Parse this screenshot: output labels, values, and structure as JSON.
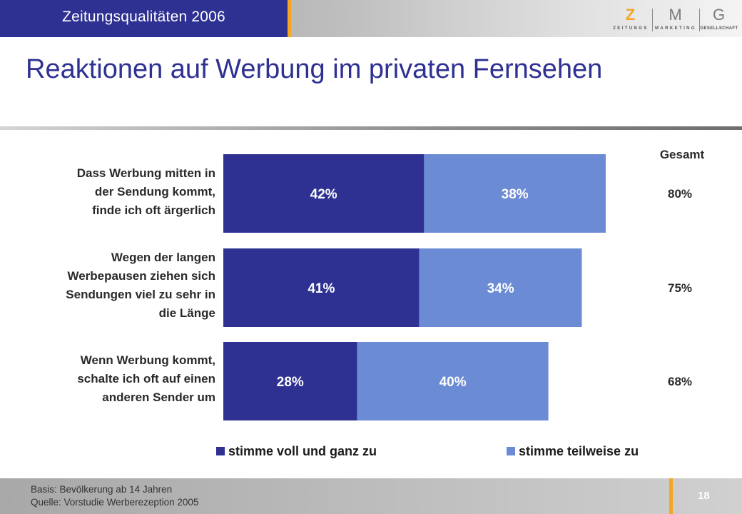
{
  "header": {
    "section_title": "Zeitungsqualitäten 2006",
    "logo": {
      "letters": [
        "Z",
        "M",
        "G"
      ],
      "words": [
        "ZEITUNGS",
        "MARKETING",
        "GESELLSCHAFT"
      ]
    }
  },
  "page_title": "Reaktionen auf Werbung im privaten Fernsehen",
  "chart_data": {
    "type": "bar",
    "orientation": "horizontal",
    "stacked": true,
    "categories": [
      "Dass Werbung mitten in der Sendung kommt, finde ich oft ärgerlich",
      "Wegen der langen Werbepausen ziehen sich Sendungen viel zu sehr in die Länge",
      "Wenn Werbung kommt, schalte ich oft auf einen anderen Sender um"
    ],
    "category_lines": [
      [
        "Dass Werbung mitten in",
        "der Sendung kommt,",
        "finde ich oft ärgerlich"
      ],
      [
        "Wegen der langen",
        "Werbepausen ziehen sich",
        "Sendungen viel zu sehr in",
        "die Länge"
      ],
      [
        "Wenn Werbung kommt,",
        "schalte ich oft auf einen",
        "anderen Sender um"
      ]
    ],
    "series": [
      {
        "name": "stimme voll und ganz zu",
        "values": [
          42,
          41,
          28
        ],
        "labels": [
          "42%",
          "41%",
          "28%"
        ],
        "color": "#2e3192"
      },
      {
        "name": "stimme teilweise zu",
        "values": [
          38,
          34,
          40
        ],
        "labels": [
          "38%",
          "34%",
          "40%"
        ],
        "color": "#6c8bd5"
      }
    ],
    "totals_header": "Gesamt",
    "totals": [
      "80%",
      "75%",
      "68%"
    ],
    "unit": "%",
    "grid": false,
    "legend_position": "bottom"
  },
  "footer": {
    "basis": "Basis: Bevölkerung ab 14 Jahren",
    "source": "Quelle: Vorstudie Werberezeption 2005",
    "page_number": "18"
  }
}
